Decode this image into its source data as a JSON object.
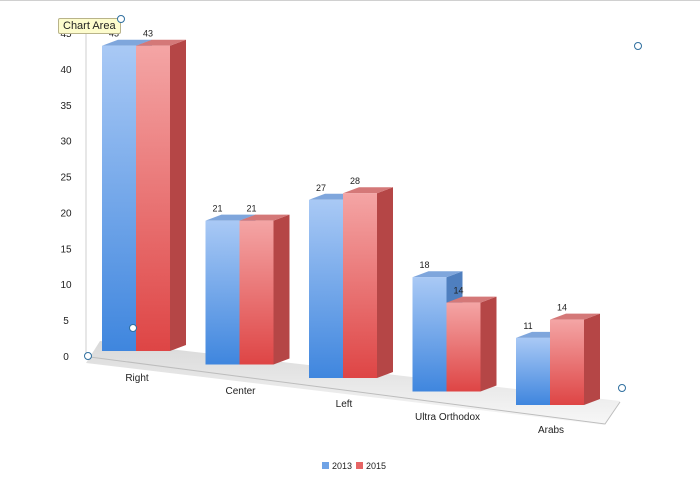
{
  "tooltip": {
    "text": "Chart Area"
  },
  "colors": {
    "series_2013": "#6fa3e6",
    "series_2015": "#e66464",
    "handle": "#2f6f9f"
  },
  "chart_data": {
    "type": "bar",
    "style": "3d-clustered-column",
    "categories": [
      "Right",
      "Center",
      "Left",
      "Ultra Orthodox",
      "Arabs"
    ],
    "series": [
      {
        "name": "2013",
        "values": [
          43,
          21,
          27,
          18,
          11
        ]
      },
      {
        "name": "2015",
        "values": [
          43,
          21,
          28,
          14,
          14
        ]
      }
    ],
    "y_ticks": [
      "0",
      "5",
      "10",
      "15",
      "20",
      "25",
      "30",
      "35",
      "40",
      "45"
    ],
    "ylim": [
      0,
      45
    ],
    "legend_position": "bottom",
    "gridlines": false
  }
}
